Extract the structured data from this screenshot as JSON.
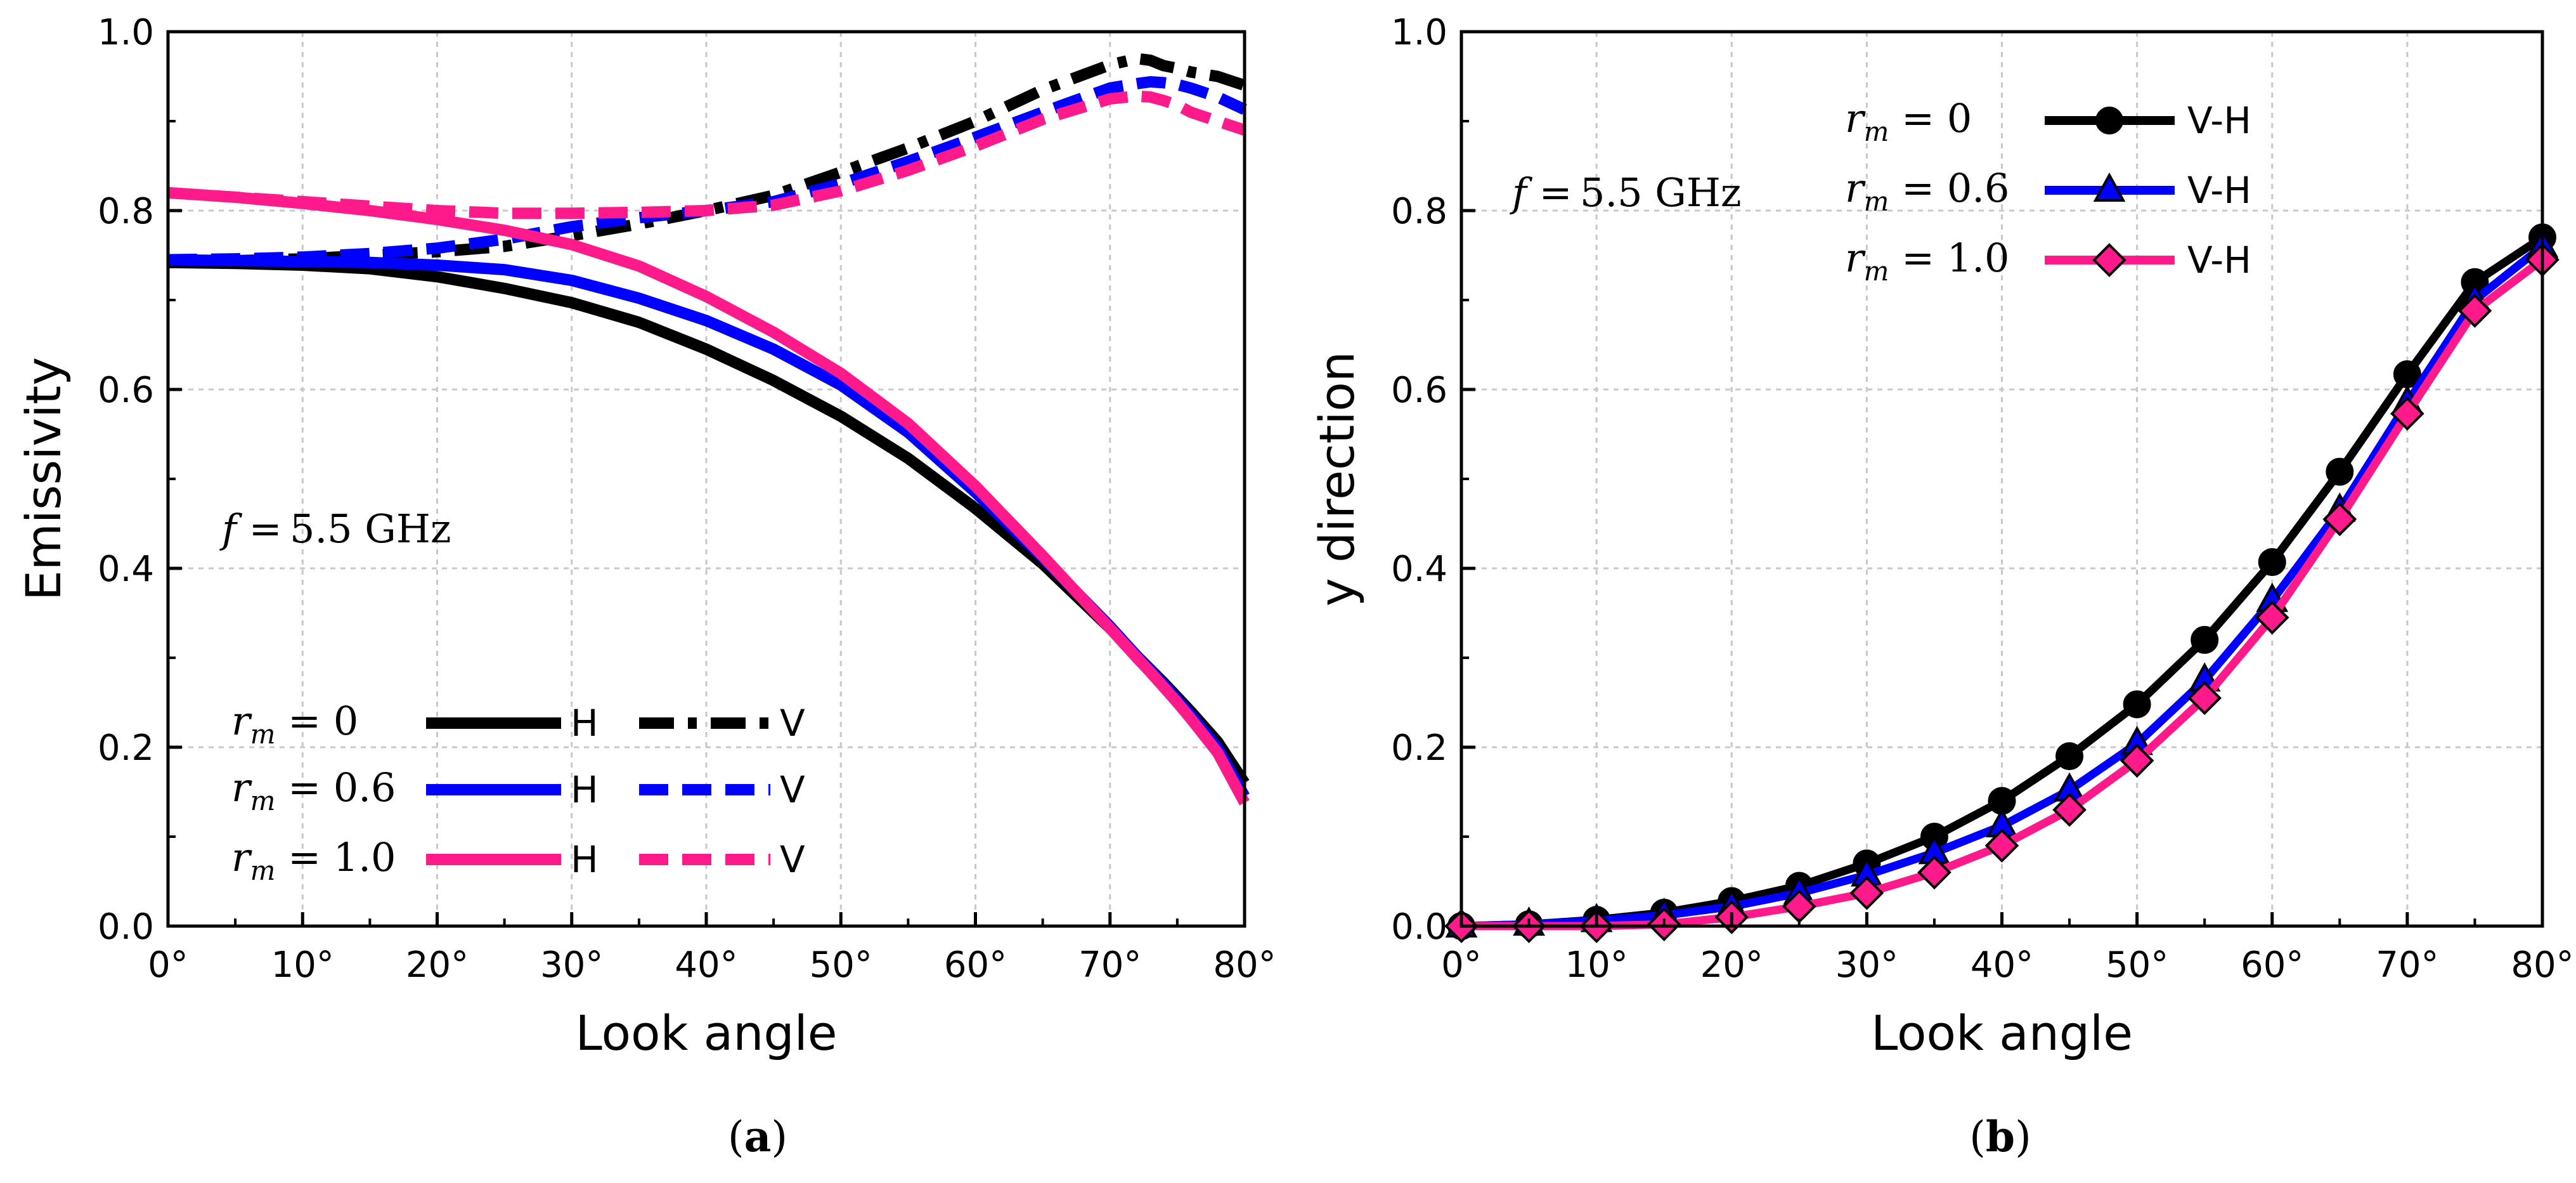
{
  "chart_data": [
    {
      "type": "line",
      "panel_label": "a",
      "xlabel": "Look angle",
      "ylabel": "Emissivity",
      "xlim": [
        0,
        80
      ],
      "ylim": [
        0,
        1.0
      ],
      "x_ticks": [
        "0°",
        "10°",
        "20°",
        "30°",
        "40°",
        "50°",
        "60°",
        "70°",
        "80°"
      ],
      "y_ticks": [
        "0.0",
        "0.2",
        "0.4",
        "0.6",
        "0.8",
        "1.0"
      ],
      "grid": true,
      "annotation": {
        "text": "f = 5.5 GHz",
        "var": "f",
        "rest": "= 5.5 GHz"
      },
      "legend_placement": "bottom-left",
      "x": [
        0,
        5,
        10,
        15,
        20,
        25,
        30,
        35,
        40,
        45,
        50,
        55,
        60,
        65,
        70,
        72,
        73,
        74,
        75,
        76,
        78,
        80
      ],
      "series": [
        {
          "name": "H",
          "rm_label": "= 0",
          "color": "#000000",
          "dash": "solid",
          "values": [
            0.742,
            0.741,
            0.739,
            0.735,
            0.726,
            0.713,
            0.697,
            0.675,
            0.645,
            0.61,
            0.57,
            0.523,
            0.467,
            0.405,
            0.333,
            0.302,
            0.287,
            0.272,
            0.256,
            0.24,
            0.206,
            0.16
          ]
        },
        {
          "name": "V",
          "rm_label": "= 0",
          "color": "#000000",
          "dash": "dashdot",
          "values": [
            0.742,
            0.744,
            0.746,
            0.75,
            0.754,
            0.76,
            0.772,
            0.785,
            0.8,
            0.817,
            0.843,
            0.87,
            0.9,
            0.935,
            0.963,
            0.97,
            0.968,
            0.962,
            0.959,
            0.955,
            0.95,
            0.94
          ]
        },
        {
          "name": "H",
          "rm_label": "= 0.6",
          "color": "#0000ff",
          "dash": "solid",
          "values": [
            0.745,
            0.744,
            0.743,
            0.742,
            0.739,
            0.734,
            0.722,
            0.702,
            0.677,
            0.645,
            0.605,
            0.552,
            0.485,
            0.412,
            0.335,
            0.302,
            0.286,
            0.27,
            0.253,
            0.236,
            0.199,
            0.145
          ]
        },
        {
          "name": "V",
          "rm_label": "= 0.6",
          "color": "#0000ff",
          "dash": "dashed",
          "values": [
            0.745,
            0.746,
            0.748,
            0.752,
            0.758,
            0.768,
            0.782,
            0.792,
            0.8,
            0.81,
            0.83,
            0.855,
            0.882,
            0.91,
            0.937,
            0.942,
            0.944,
            0.943,
            0.941,
            0.937,
            0.927,
            0.913
          ]
        },
        {
          "name": "H",
          "rm_label": "= 1.0",
          "color": "#ff1a8c",
          "dash": "solid",
          "values": [
            0.82,
            0.815,
            0.808,
            0.8,
            0.79,
            0.778,
            0.762,
            0.738,
            0.704,
            0.664,
            0.618,
            0.562,
            0.492,
            0.414,
            0.333,
            0.3,
            0.284,
            0.267,
            0.25,
            0.232,
            0.194,
            0.138
          ]
        },
        {
          "name": "V",
          "rm_label": "= 1.0",
          "color": "#ff1a8c",
          "dash": "dashed",
          "values": [
            0.82,
            0.815,
            0.81,
            0.805,
            0.8,
            0.797,
            0.797,
            0.798,
            0.8,
            0.806,
            0.822,
            0.845,
            0.872,
            0.902,
            0.925,
            0.928,
            0.927,
            0.923,
            0.918,
            0.91,
            0.9,
            0.89
          ]
        }
      ]
    },
    {
      "type": "line",
      "panel_label": "b",
      "xlabel": "Look angle",
      "ylabel": "y direction",
      "xlim": [
        0,
        80
      ],
      "ylim": [
        0,
        1.0
      ],
      "x_ticks": [
        "0°",
        "10°",
        "20°",
        "30°",
        "40°",
        "50°",
        "60°",
        "70°",
        "80°"
      ],
      "y_ticks": [
        "0.0",
        "0.2",
        "0.4",
        "0.6",
        "0.8",
        "1.0"
      ],
      "grid": true,
      "annotation": {
        "text": "f = 5.5 GHz",
        "var": "f",
        "rest": "= 5.5 GHz"
      },
      "legend_placement": "top-center",
      "x": [
        0,
        5,
        10,
        15,
        20,
        25,
        30,
        35,
        40,
        45,
        50,
        55,
        60,
        65,
        70,
        75,
        80
      ],
      "series": [
        {
          "name": "V-H",
          "rm_label": "= 0",
          "color": "#000000",
          "marker": "circle",
          "values": [
            0.0,
            0.002,
            0.007,
            0.015,
            0.028,
            0.045,
            0.07,
            0.1,
            0.14,
            0.19,
            0.248,
            0.32,
            0.407,
            0.508,
            0.617,
            0.72,
            0.77
          ]
        },
        {
          "name": "V-H",
          "rm_label": "= 0.6",
          "color": "#0000ff",
          "marker": "triangle",
          "values": [
            0.0,
            0.002,
            0.006,
            0.012,
            0.022,
            0.037,
            0.057,
            0.082,
            0.112,
            0.152,
            0.204,
            0.275,
            0.364,
            0.465,
            0.585,
            0.7,
            0.76
          ]
        },
        {
          "name": "V-H",
          "rm_label": "= 1.0",
          "color": "#ff1a8c",
          "marker": "diamond",
          "values": [
            0.0,
            0.0,
            0.0,
            0.002,
            0.01,
            0.022,
            0.037,
            0.06,
            0.09,
            0.13,
            0.185,
            0.255,
            0.345,
            0.455,
            0.573,
            0.688,
            0.745
          ]
        }
      ]
    }
  ]
}
